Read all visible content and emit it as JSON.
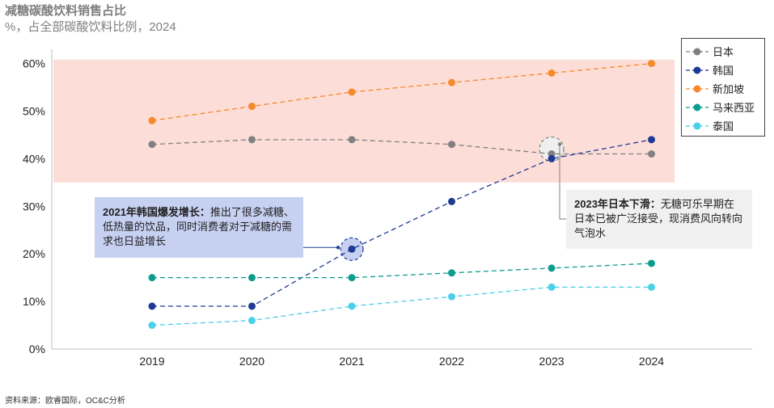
{
  "header": {
    "title": "减糖碳酸饮料销售占比",
    "subtitle": "%，占全部碳酸饮料比例，2024"
  },
  "footer": {
    "source": "资料来源：欧睿国际，OC&C分析"
  },
  "colors": {
    "highlight_band": "#fdddd8",
    "axis": "#bfbfbf",
    "callout_kr_bg": "#c6d0f1",
    "callout_jp_bg": "#f0f0f0"
  },
  "chart_data": {
    "type": "line",
    "categories": [
      "2019",
      "2020",
      "2021",
      "2022",
      "2023",
      "2024"
    ],
    "ylim": [
      0,
      60
    ],
    "yticks": [
      0,
      10,
      20,
      30,
      40,
      50,
      60
    ],
    "ytick_labels": [
      "0%",
      "10%",
      "20%",
      "30%",
      "40%",
      "50%",
      "60%"
    ],
    "highlight_band": [
      35,
      61
    ],
    "series": [
      {
        "name": "日本",
        "color": "#808080",
        "values": [
          43,
          44,
          44,
          43,
          41,
          41
        ]
      },
      {
        "name": "韩国",
        "color": "#1f3a93",
        "values": [
          9,
          9,
          21,
          31,
          40,
          44
        ]
      },
      {
        "name": "新加坡",
        "color": "#f58a2c",
        "values": [
          48,
          51,
          54,
          56,
          58,
          60
        ]
      },
      {
        "name": "马来西亚",
        "color": "#0e9c8f",
        "values": [
          15,
          15,
          15,
          16,
          17,
          18
        ]
      },
      {
        "name": "泰国",
        "color": "#4ccfe8",
        "values": [
          5,
          6,
          9,
          11,
          13,
          13
        ]
      }
    ],
    "annotations": [
      {
        "series": "韩国",
        "category": "2021",
        "title": "2021年韩国爆发增长：",
        "text": "推出了很多减糖、低热量的饮品，同时消费者对于减糖的需求也日益增长"
      },
      {
        "series": "日本",
        "category": "2023",
        "title": "2023年日本下滑：",
        "text": "无糖可乐早期在日本已被广泛接受，现消费风向转向气泡水"
      }
    ]
  }
}
